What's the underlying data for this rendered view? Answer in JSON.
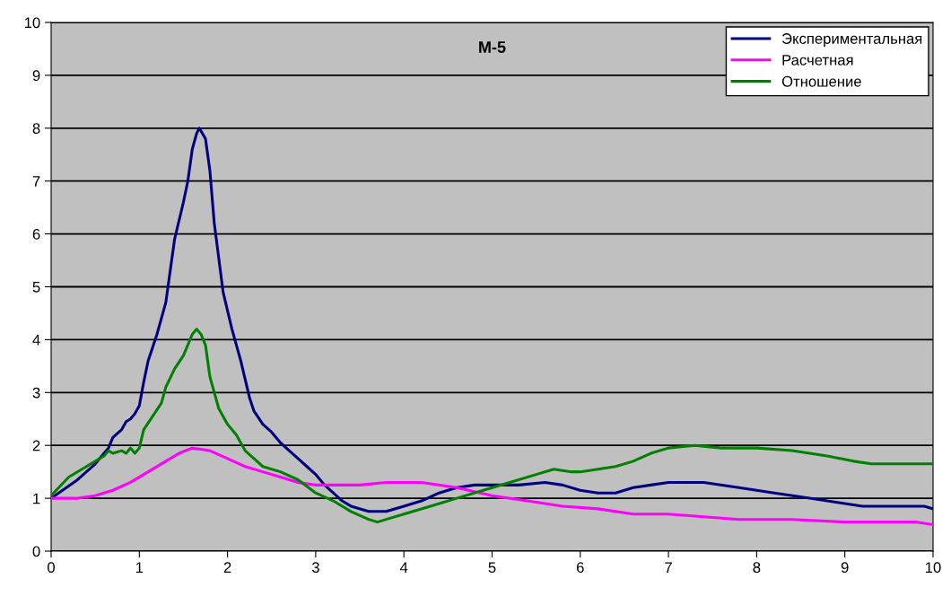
{
  "chart_data": {
    "type": "line",
    "title": "M-5",
    "xlim": [
      0,
      10
    ],
    "ylim": [
      0,
      10
    ],
    "xticks": [
      0,
      1,
      2,
      3,
      4,
      5,
      6,
      7,
      8,
      9,
      10
    ],
    "yticks": [
      0,
      1,
      2,
      3,
      4,
      5,
      6,
      7,
      8,
      9,
      10
    ],
    "grid": "y",
    "legend": "top right",
    "marker": "none",
    "line_style": "solid",
    "series": [
      {
        "name": "Экспериментальная",
        "color": "#000080",
        "x": [
          0,
          0.3,
          0.5,
          0.6,
          0.65,
          0.7,
          0.8,
          0.85,
          0.9,
          0.95,
          1.0,
          1.05,
          1.1,
          1.2,
          1.3,
          1.35,
          1.4,
          1.5,
          1.55,
          1.6,
          1.65,
          1.68,
          1.75,
          1.8,
          1.85,
          1.95,
          2.05,
          2.15,
          2.25,
          2.3,
          2.4,
          2.5,
          2.6,
          2.7,
          2.8,
          2.9,
          3.0,
          3.1,
          3.2,
          3.3,
          3.4,
          3.6,
          3.8,
          4.0,
          4.2,
          4.4,
          4.6,
          4.8,
          5.0,
          5.3,
          5.6,
          5.8,
          6.0,
          6.2,
          6.4,
          6.6,
          6.8,
          7.0,
          7.4,
          7.8,
          8.2,
          8.6,
          9.0,
          9.2,
          9.6,
          9.9,
          10
        ],
        "values": [
          1.0,
          1.35,
          1.65,
          1.85,
          1.95,
          2.15,
          2.3,
          2.45,
          2.5,
          2.6,
          2.75,
          3.2,
          3.6,
          4.1,
          4.7,
          5.3,
          5.9,
          6.6,
          7.0,
          7.6,
          7.9,
          8.0,
          7.8,
          7.2,
          6.2,
          4.9,
          4.2,
          3.6,
          2.9,
          2.65,
          2.4,
          2.25,
          2.05,
          1.9,
          1.75,
          1.6,
          1.45,
          1.25,
          1.1,
          0.95,
          0.85,
          0.75,
          0.75,
          0.85,
          0.95,
          1.1,
          1.2,
          1.25,
          1.25,
          1.25,
          1.3,
          1.25,
          1.15,
          1.1,
          1.1,
          1.2,
          1.25,
          1.3,
          1.3,
          1.2,
          1.1,
          1.0,
          0.9,
          0.85,
          0.85,
          0.85,
          0.8
        ]
      },
      {
        "name": "Расчетная",
        "color": "#ff00ff",
        "x": [
          0,
          0.3,
          0.5,
          0.7,
          0.9,
          1.1,
          1.3,
          1.45,
          1.6,
          1.8,
          2.0,
          2.2,
          2.4,
          2.6,
          2.8,
          3.0,
          3.5,
          3.8,
          4.2,
          4.6,
          5.0,
          5.4,
          5.8,
          6.2,
          6.6,
          7.0,
          7.4,
          7.8,
          8.4,
          9.0,
          9.8,
          10
        ],
        "values": [
          1.0,
          1.0,
          1.05,
          1.15,
          1.3,
          1.5,
          1.7,
          1.85,
          1.95,
          1.9,
          1.75,
          1.6,
          1.5,
          1.4,
          1.3,
          1.25,
          1.25,
          1.3,
          1.3,
          1.2,
          1.05,
          0.95,
          0.85,
          0.8,
          0.7,
          0.7,
          0.65,
          0.6,
          0.6,
          0.55,
          0.55,
          0.5
        ]
      },
      {
        "name": "Отношение",
        "color": "#008000",
        "x": [
          0,
          0.2,
          0.4,
          0.6,
          0.65,
          0.7,
          0.8,
          0.85,
          0.9,
          0.95,
          1.0,
          1.05,
          1.15,
          1.25,
          1.3,
          1.4,
          1.5,
          1.6,
          1.65,
          1.7,
          1.75,
          1.8,
          1.9,
          2.0,
          2.1,
          2.2,
          2.3,
          2.4,
          2.6,
          2.8,
          3.0,
          3.2,
          3.4,
          3.6,
          3.7,
          3.8,
          4.0,
          4.3,
          4.6,
          4.9,
          5.2,
          5.5,
          5.7,
          5.9,
          6.0,
          6.2,
          6.4,
          6.6,
          6.8,
          7.0,
          7.3,
          7.6,
          8.0,
          8.4,
          8.8,
          9.1,
          9.3,
          10
        ],
        "values": [
          1.05,
          1.4,
          1.6,
          1.8,
          1.9,
          1.85,
          1.9,
          1.85,
          1.95,
          1.85,
          1.95,
          2.3,
          2.55,
          2.8,
          3.1,
          3.45,
          3.7,
          4.1,
          4.2,
          4.1,
          3.9,
          3.3,
          2.7,
          2.4,
          2.2,
          1.9,
          1.75,
          1.6,
          1.5,
          1.35,
          1.1,
          0.95,
          0.75,
          0.6,
          0.55,
          0.6,
          0.7,
          0.85,
          1.0,
          1.15,
          1.3,
          1.45,
          1.55,
          1.5,
          1.5,
          1.55,
          1.6,
          1.7,
          1.85,
          1.95,
          2.0,
          1.95,
          1.95,
          1.9,
          1.8,
          1.7,
          1.65,
          1.65
        ]
      }
    ]
  }
}
